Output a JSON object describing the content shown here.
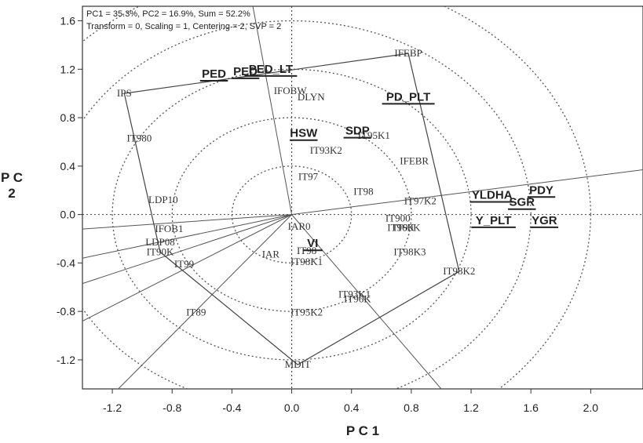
{
  "chart_data": {
    "type": "scatter",
    "subtype": "GGE biplot (which-won-where polygon)",
    "info_line1": "PC1 = 35.3%, PC2 = 16.9%, Sum = 52.2%",
    "info_line2": "Transform = 0, Scaling = 1, Centering = 2, SVP = 2",
    "xlabel": "P C 1",
    "ylabel": "P C 2",
    "xlim": [
      -1.4,
      2.35
    ],
    "ylim": [
      -1.44,
      1.72
    ],
    "xticks": [
      "-1.2",
      "-0.8",
      "-0.4",
      "0.0",
      "0.4",
      "0.8",
      "1.2",
      "1.6",
      "2.0"
    ],
    "yticks": [
      "1.6",
      "1.2",
      "0.8",
      "0.4",
      "0.0",
      "-0.4",
      "-0.8",
      "-1.2"
    ],
    "concentric_circle_radii": [
      0.4,
      0.8,
      1.2,
      1.6,
      2.0
    ],
    "grid": false,
    "genotypes": [
      {
        "label": "IFEBP",
        "x": 0.78,
        "y": 1.33
      },
      {
        "label": "IPS",
        "x": -1.12,
        "y": 1.0
      },
      {
        "label": "IFOBW",
        "x": -0.01,
        "y": 1.02
      },
      {
        "label": "DLYN",
        "x": 0.13,
        "y": 0.97
      },
      {
        "label": "IT980",
        "x": -1.02,
        "y": 0.63
      },
      {
        "label": "IT95K1",
        "x": 0.55,
        "y": 0.65
      },
      {
        "label": "IT93K2",
        "x": 0.23,
        "y": 0.53
      },
      {
        "label": "IFEBR",
        "x": 0.82,
        "y": 0.44
      },
      {
        "label": "IT97",
        "x": 0.11,
        "y": 0.31
      },
      {
        "label": "IT98",
        "x": 0.48,
        "y": 0.19
      },
      {
        "label": "IT97K2",
        "x": 0.86,
        "y": 0.11
      },
      {
        "label": "LDP10",
        "x": -0.86,
        "y": 0.12
      },
      {
        "label": "IT900",
        "x": 0.71,
        "y": -0.03
      },
      {
        "label": "IT96K",
        "x": 0.73,
        "y": -0.11
      },
      {
        "label": "IT90K",
        "x": 0.77,
        "y": -0.11
      },
      {
        "label": "IAR0",
        "x": 0.05,
        "y": -0.1
      },
      {
        "label": "IFOB1",
        "x": -0.82,
        "y": -0.12
      },
      {
        "label": "LDP08",
        "x": -0.88,
        "y": -0.23
      },
      {
        "label": "IT90K",
        "x": -0.88,
        "y": -0.31
      },
      {
        "label": "IT98K3",
        "x": 0.79,
        "y": -0.31
      },
      {
        "label": "IT98",
        "x": 0.1,
        "y": -0.3
      },
      {
        "label": "IAR",
        "x": -0.14,
        "y": -0.33
      },
      {
        "label": "IT98K1",
        "x": 0.1,
        "y": -0.39
      },
      {
        "label": "IT99",
        "x": -0.72,
        "y": -0.41
      },
      {
        "label": "IT98K2",
        "x": 1.12,
        "y": -0.47
      },
      {
        "label": "IT93K1",
        "x": 0.42,
        "y": -0.66
      },
      {
        "label": "IT96K",
        "x": 0.44,
        "y": -0.7
      },
      {
        "label": "IT89",
        "x": -0.64,
        "y": -0.81
      },
      {
        "label": "IT95K2",
        "x": 0.1,
        "y": -0.81
      },
      {
        "label": "MDIT",
        "x": 0.04,
        "y": -1.24
      }
    ],
    "traits": [
      {
        "label": "PED_LT",
        "x": -0.14,
        "y": 1.19
      },
      {
        "label": "PED",
        "x": -0.52,
        "y": 1.15
      },
      {
        "label": "PED",
        "x": -0.31,
        "y": 1.17
      },
      {
        "label": "PD_PLT",
        "x": 0.78,
        "y": 0.96
      },
      {
        "label": "HSW",
        "x": 0.08,
        "y": 0.66
      },
      {
        "label": "SDP",
        "x": 0.44,
        "y": 0.68
      },
      {
        "label": "YLDHA",
        "x": 1.34,
        "y": 0.15
      },
      {
        "label": "PDY",
        "x": 1.67,
        "y": 0.19
      },
      {
        "label": "SGR",
        "x": 1.54,
        "y": 0.09
      },
      {
        "label": "Y_PLT",
        "x": 1.35,
        "y": -0.06
      },
      {
        "label": "YGR",
        "x": 1.69,
        "y": -0.06
      },
      {
        "label": "VI",
        "x": 0.14,
        "y": -0.25
      }
    ],
    "polygon_vertices": [
      {
        "x": 0.78,
        "y": 1.33
      },
      {
        "x": -1.12,
        "y": 1.0
      },
      {
        "x": -0.88,
        "y": -0.31
      },
      {
        "x": 0.04,
        "y": -1.24
      },
      {
        "x": 1.12,
        "y": -0.47
      }
    ],
    "sector_ray_endpoints": [
      {
        "x": 2.35,
        "y": 0.37
      },
      {
        "x": -1.4,
        "y": -0.12
      },
      {
        "x": -1.4,
        "y": -0.36
      },
      {
        "x": -1.4,
        "y": -0.57
      },
      {
        "x": -1.4,
        "y": -0.88
      },
      {
        "x": -1.16,
        "y": -1.44
      },
      {
        "x": 1.0,
        "y": -1.44
      },
      {
        "x": -0.26,
        "y": 1.72
      }
    ]
  }
}
